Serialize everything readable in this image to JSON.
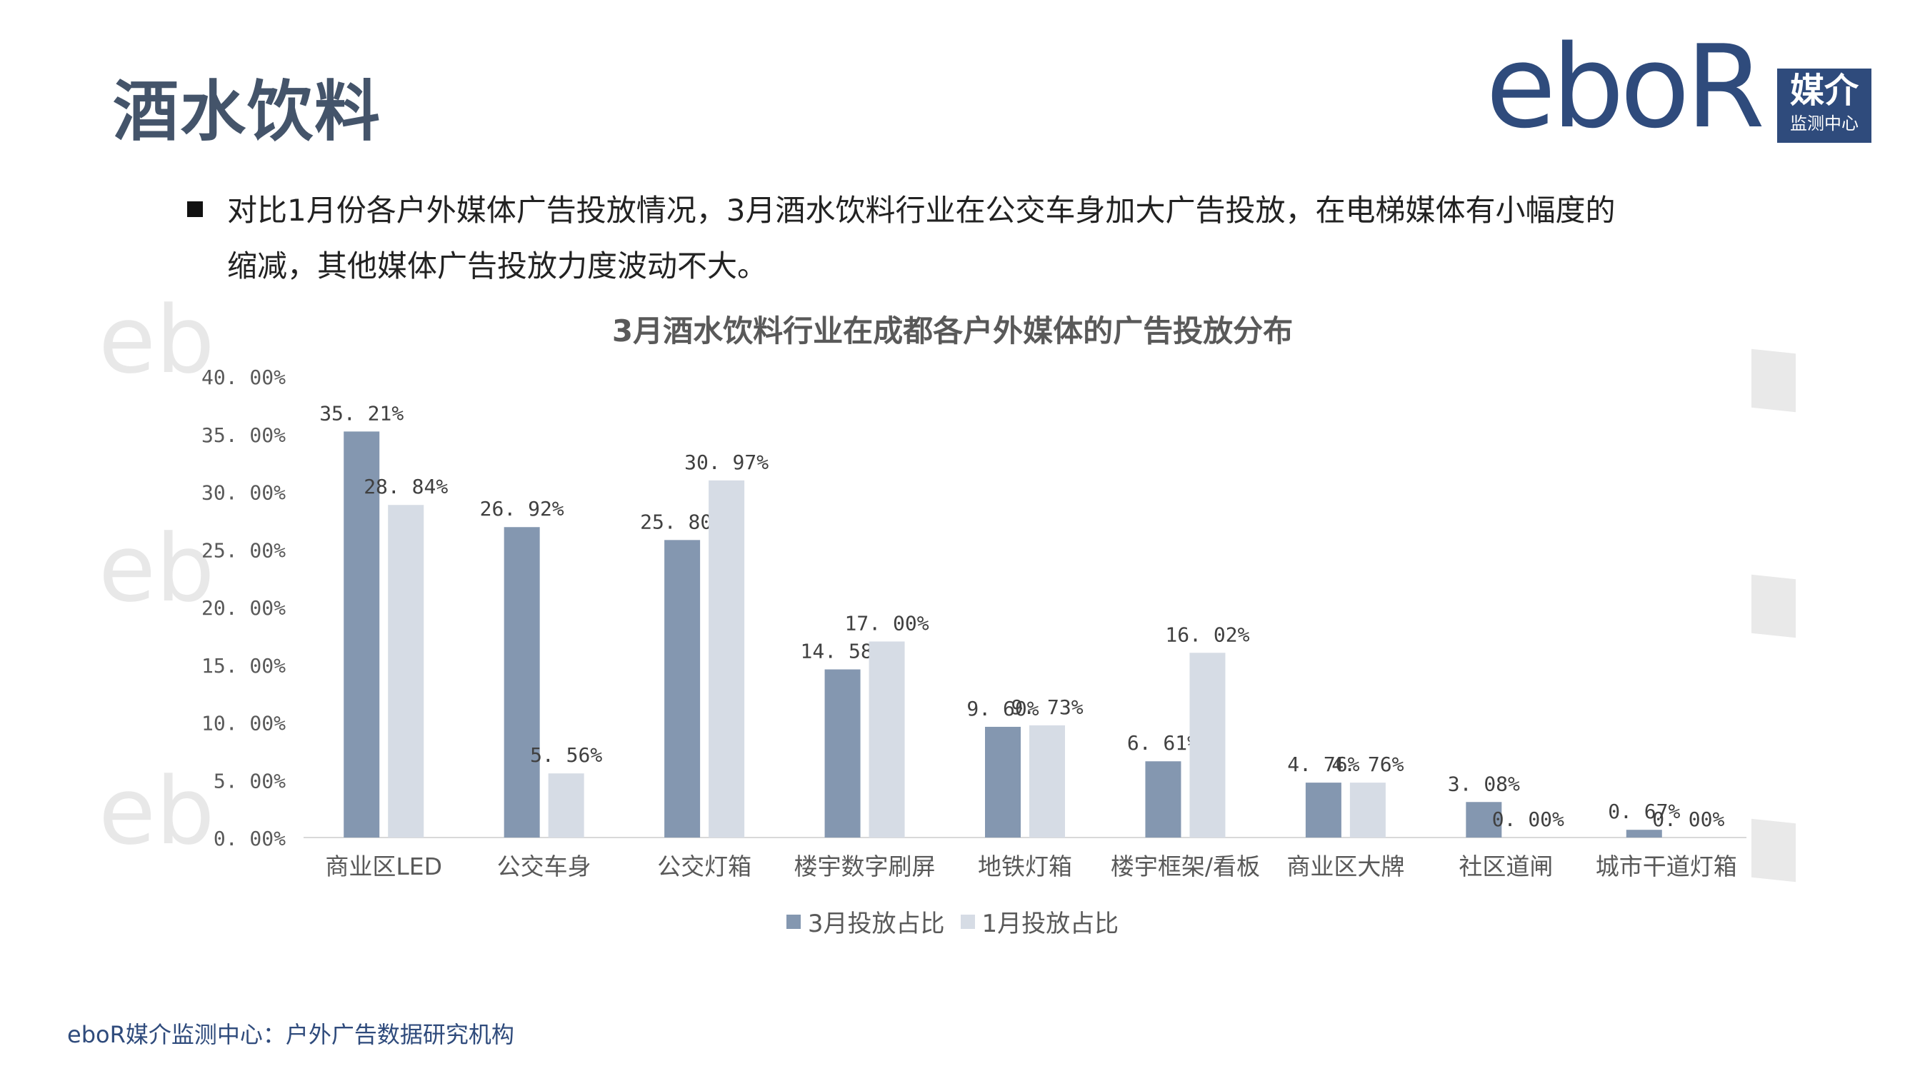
{
  "header": {
    "title": "酒水饮料"
  },
  "logo": {
    "word": "eboR",
    "box_line1": "媒介",
    "box_line2": "监测中心"
  },
  "description": {
    "line1": "对比1月份各户外媒体广告投放情况，3月酒水饮料行业在公交车身加大广告投放，在电梯媒体有小幅度的",
    "line2": "缩减，其他媒体广告投放力度波动不大。"
  },
  "watermark_text": "eb",
  "chart_data": {
    "type": "bar",
    "title": "3月酒水饮料行业在成都各户外媒体的广告投放分布",
    "categories": [
      "商业区LED",
      "公交车身",
      "公交灯箱",
      "楼宇数字刷屏",
      "地铁灯箱",
      "楼宇框架/看板",
      "商业区大牌",
      "社区道闸",
      "城市干道灯箱"
    ],
    "series": [
      {
        "name": "3月投放占比",
        "color": "#8497b0",
        "values": [
          35.21,
          26.92,
          25.8,
          14.58,
          9.6,
          6.61,
          4.76,
          3.08,
          0.67
        ],
        "labels": [
          "35. 21%",
          "26. 92%",
          "25. 80%",
          "14. 58%",
          "9. 60%",
          "6. 61%",
          "4. 76%",
          "3. 08%",
          "0. 67%"
        ]
      },
      {
        "name": "1月投放占比",
        "color": "#d6dce5",
        "values": [
          28.84,
          5.56,
          30.97,
          17.0,
          9.73,
          16.02,
          4.76,
          0.0,
          0.0
        ],
        "labels": [
          "28. 84%",
          "5. 56%",
          "30. 97%",
          "17. 00%",
          "9. 73%",
          "16. 02%",
          "4. 76%",
          "0. 00%",
          "0. 00%"
        ]
      }
    ],
    "yticks": [
      0,
      5,
      10,
      15,
      20,
      25,
      30,
      35,
      40
    ],
    "ytick_labels": [
      "0. 00%",
      "5. 00%",
      "10. 00%",
      "15. 00%",
      "20. 00%",
      "25. 00%",
      "30. 00%",
      "35. 00%",
      "40. 00%"
    ],
    "ylim": [
      0,
      40
    ],
    "legend": "bottom",
    "grid": false
  },
  "footer": {
    "source": "eboR媒介监测中心：户外广告数据研究机构"
  }
}
